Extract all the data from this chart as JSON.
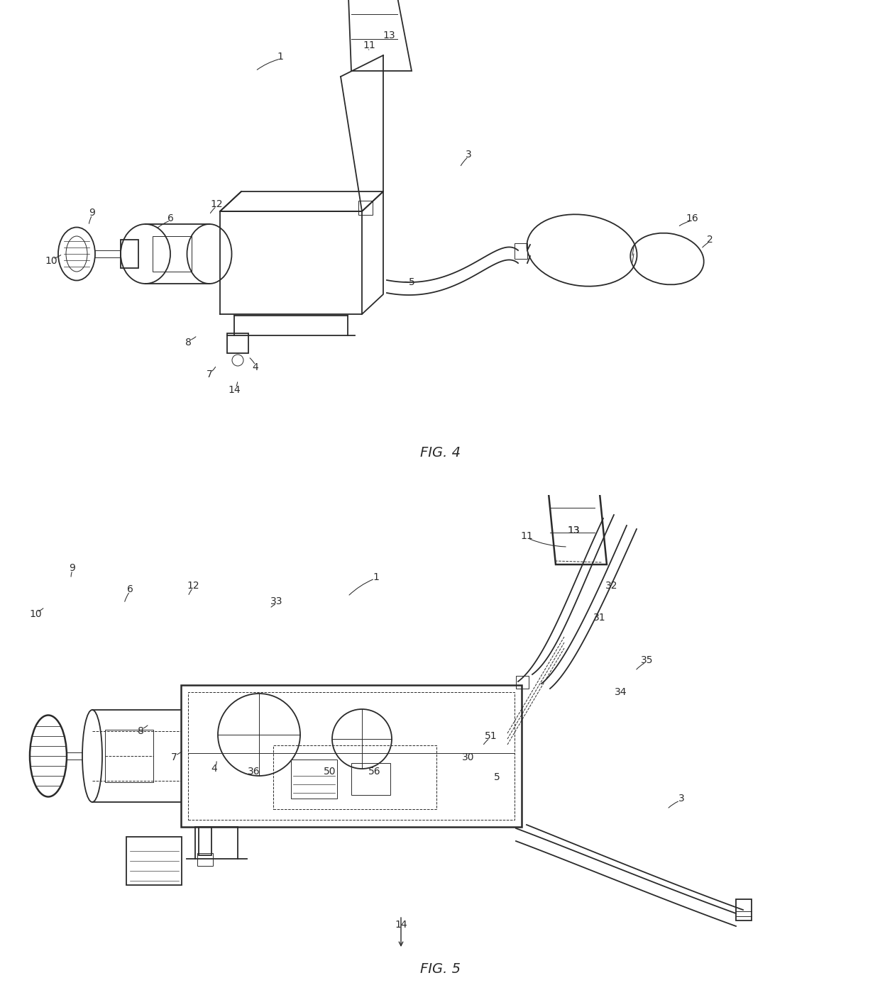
{
  "fig_width": 12.4,
  "fig_height": 13.96,
  "dpi": 100,
  "bg_color": "#ffffff",
  "line_color": "#2a2a2a",
  "lw_main": 1.3,
  "lw_thin": 0.7,
  "lw_thick": 1.8,
  "fig4_caption": "FIG. 4",
  "fig5_caption": "FIG. 5",
  "caption_fontsize": 14,
  "label_fontsize": 10
}
